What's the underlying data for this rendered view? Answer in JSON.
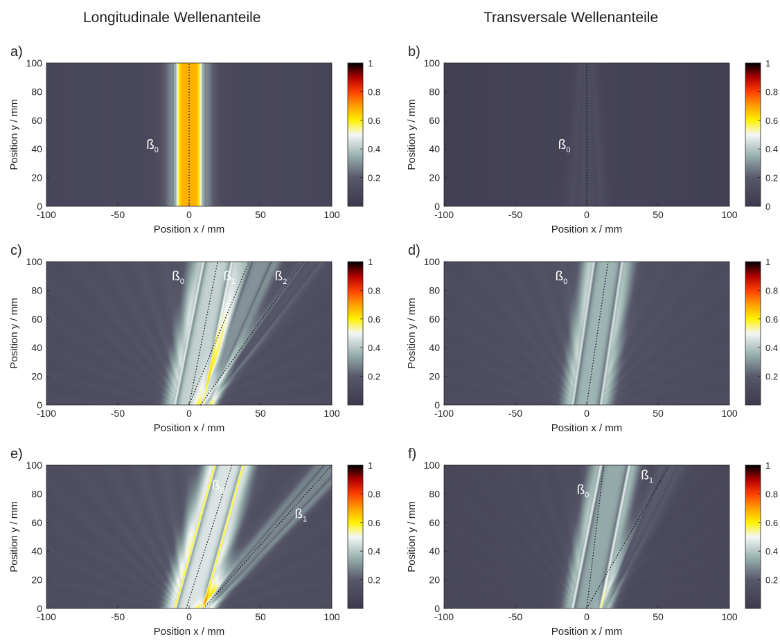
{
  "column_titles": [
    "Longitudinale Wellenanteile",
    "Transversale Wellenanteile"
  ],
  "colormap_stops": [
    {
      "v": 0.0,
      "c": "#3d3a4d"
    },
    {
      "v": 0.2,
      "c": "#58596a"
    },
    {
      "v": 0.35,
      "c": "#98b0ae"
    },
    {
      "v": 0.5,
      "c": "#f4f7f6"
    },
    {
      "v": 0.6,
      "c": "#fff200"
    },
    {
      "v": 0.7,
      "c": "#ffa000"
    },
    {
      "v": 0.8,
      "c": "#ff4000"
    },
    {
      "v": 0.9,
      "c": "#b40000"
    },
    {
      "v": 1.0,
      "c": "#000000"
    }
  ],
  "chart_data": [
    {
      "panel": "a)",
      "type": "heatmap",
      "xlabel": "Position x / mm",
      "ylabel": "Position y / mm",
      "xlim": [
        -100,
        100
      ],
      "ylim": [
        0,
        100
      ],
      "xticks": [
        -100,
        -50,
        0,
        50,
        100
      ],
      "yticks": [
        0,
        20,
        40,
        60,
        80,
        100
      ],
      "colorbar": {
        "ticks": [
          0.2,
          0.4,
          0.6,
          0.8,
          1
        ],
        "labels": [
          "0.2",
          "0.4",
          "0.6",
          "0.8",
          "1"
        ]
      },
      "background": 0.07,
      "beams": [
        {
          "x0": -10,
          "x1": 10,
          "slope": 0,
          "peak": 0.68,
          "spread": 0,
          "edge": 0.38
        }
      ],
      "fan": 0,
      "guides": [
        {
          "x0": 0,
          "x1": 0
        }
      ],
      "annotations": [
        {
          "text": "ß",
          "sub": "0",
          "x": -30,
          "y": 40
        }
      ]
    },
    {
      "panel": "b)",
      "type": "heatmap",
      "xlabel": "Position x / mm",
      "ylabel": "Position y / mm",
      "xlim": [
        -100,
        100
      ],
      "ylim": [
        0,
        100
      ],
      "xticks": [
        -100,
        -50,
        0,
        50,
        100
      ],
      "yticks": [
        0,
        20,
        40,
        60,
        80,
        100
      ],
      "colorbar": {
        "ticks": [
          0,
          0.2,
          0.4,
          0.6,
          0.8,
          1
        ],
        "labels": [
          "0",
          "0.2",
          "0.4",
          "0.6",
          "0.8",
          "1"
        ]
      },
      "background": 0.03,
      "beams": [
        {
          "x0": -8,
          "x1": 8,
          "slope": 0,
          "peak": 0.12,
          "spread": -0.05,
          "edge": 0.12
        }
      ],
      "fan": 0,
      "guides": [
        {
          "x0": 0,
          "x1": 0
        }
      ],
      "annotations": [
        {
          "text": "ß",
          "sub": "0",
          "x": -20,
          "y": 40
        }
      ]
    },
    {
      "panel": "c)",
      "type": "heatmap",
      "xlabel": "Position x / mm",
      "ylabel": "Position y / mm",
      "xlim": [
        -100,
        100
      ],
      "ylim": [
        0,
        100
      ],
      "xticks": [
        -100,
        -50,
        0,
        50,
        100
      ],
      "yticks": [
        0,
        20,
        40,
        60,
        80,
        100
      ],
      "colorbar": {
        "ticks": [
          0.2,
          0.4,
          0.6,
          0.8,
          1
        ],
        "labels": [
          "0.2",
          "0.4",
          "0.6",
          "0.8",
          "1"
        ]
      },
      "background": 0.1,
      "beams": [
        {
          "x0": -10,
          "x1": 10,
          "slope": 0.2,
          "peak": 0.42,
          "spread": 0,
          "edge": 0.5
        },
        {
          "x0": 8,
          "x1": 14,
          "slope": 0.4,
          "peak": 0.3,
          "spread": 0.05,
          "edge": 0.32
        },
        {
          "x0": 10,
          "x1": 14,
          "slope": 0.75,
          "peak": 0.18,
          "spread": 0.03,
          "edge": 0.18
        }
      ],
      "fan": 0.12,
      "guides": [
        {
          "x0": 0,
          "x1": 20
        },
        {
          "x0": 0,
          "x1": 42
        },
        {
          "x0": 8,
          "x1": 80
        }
      ],
      "annotations": [
        {
          "text": "ß",
          "sub": "0",
          "x": -12,
          "y": 87
        },
        {
          "text": "ß",
          "sub": "1",
          "x": 24,
          "y": 87
        },
        {
          "text": "ß",
          "sub": "2",
          "x": 60,
          "y": 87
        }
      ]
    },
    {
      "panel": "d)",
      "type": "heatmap",
      "xlabel": "Position x / mm",
      "ylabel": "Position y / mm",
      "xlim": [
        -100,
        100
      ],
      "ylim": [
        0,
        100
      ],
      "xticks": [
        -100,
        -50,
        0,
        50,
        100
      ],
      "yticks": [
        0,
        20,
        40,
        60,
        80,
        100
      ],
      "colorbar": {
        "ticks": [
          0.2,
          0.4,
          0.6,
          0.8,
          1
        ],
        "labels": [
          "0.2",
          "0.4",
          "0.6",
          "0.8",
          "1"
        ]
      },
      "background": 0.1,
      "beams": [
        {
          "x0": -10,
          "x1": 10,
          "slope": 0.15,
          "peak": 0.36,
          "spread": 0,
          "edge": 0.48
        }
      ],
      "fan": 0.1,
      "guides": [
        {
          "x0": 0,
          "x1": 15
        }
      ],
      "annotations": [
        {
          "text": "ß",
          "sub": "0",
          "x": -22,
          "y": 87
        }
      ]
    },
    {
      "panel": "e)",
      "type": "heatmap",
      "xlabel": "Position x / mm",
      "ylabel": "Position y / mm",
      "xlim": [
        -100,
        100
      ],
      "ylim": [
        0,
        100
      ],
      "xticks": [
        -100,
        -50,
        0,
        50,
        100
      ],
      "yticks": [
        0,
        20,
        40,
        60,
        80,
        100
      ],
      "colorbar": {
        "ticks": [
          0.2,
          0.4,
          0.6,
          0.8,
          1
        ],
        "labels": [
          "0.2",
          "0.4",
          "0.6",
          "0.8",
          "1"
        ]
      },
      "background": 0.1,
      "beams": [
        {
          "x0": -10,
          "x1": 10,
          "slope": 0.28,
          "peak": 0.46,
          "spread": 0,
          "edge": 0.62
        },
        {
          "x0": 8,
          "x1": 14,
          "slope": 0.9,
          "peak": 0.28,
          "spread": 0.05,
          "edge": 0.3
        }
      ],
      "fan": 0.13,
      "guides": [
        {
          "x0": -2,
          "x1": 30
        },
        {
          "x0": 10,
          "x1": 100
        }
      ],
      "annotations": [
        {
          "text": "ß",
          "sub": "0",
          "x": 16,
          "y": 83
        },
        {
          "text": "ß",
          "sub": "1",
          "x": 74,
          "y": 63
        }
      ]
    },
    {
      "panel": "f)",
      "type": "heatmap",
      "xlabel": "Position x / mm",
      "ylabel": "Position y / mm",
      "xlim": [
        -100,
        100
      ],
      "ylim": [
        0,
        100
      ],
      "xticks": [
        -100,
        -50,
        0,
        50,
        100
      ],
      "yticks": [
        0,
        20,
        40,
        60,
        80,
        100
      ],
      "colorbar": {
        "ticks": [
          0.2,
          0.4,
          0.6,
          0.8,
          1
        ],
        "labels": [
          "0.2",
          "0.4",
          "0.6",
          "0.8",
          "1"
        ]
      },
      "background": 0.07,
      "beams": [
        {
          "x0": -10,
          "x1": 10,
          "slope": 0.2,
          "peak": 0.34,
          "spread": 0,
          "edge": 0.5
        },
        {
          "x0": 10,
          "x1": 14,
          "slope": 0.48,
          "peak": 0.2,
          "spread": 0.03,
          "edge": 0.18
        }
      ],
      "fan": 0.08,
      "guides": [
        {
          "x0": 0,
          "x1": 12
        },
        {
          "x0": 0,
          "x1": 58
        }
      ],
      "annotations": [
        {
          "text": "ß",
          "sub": "0",
          "x": -7,
          "y": 80
        },
        {
          "text": "ß",
          "sub": "1",
          "x": 38,
          "y": 90
        }
      ]
    }
  ]
}
